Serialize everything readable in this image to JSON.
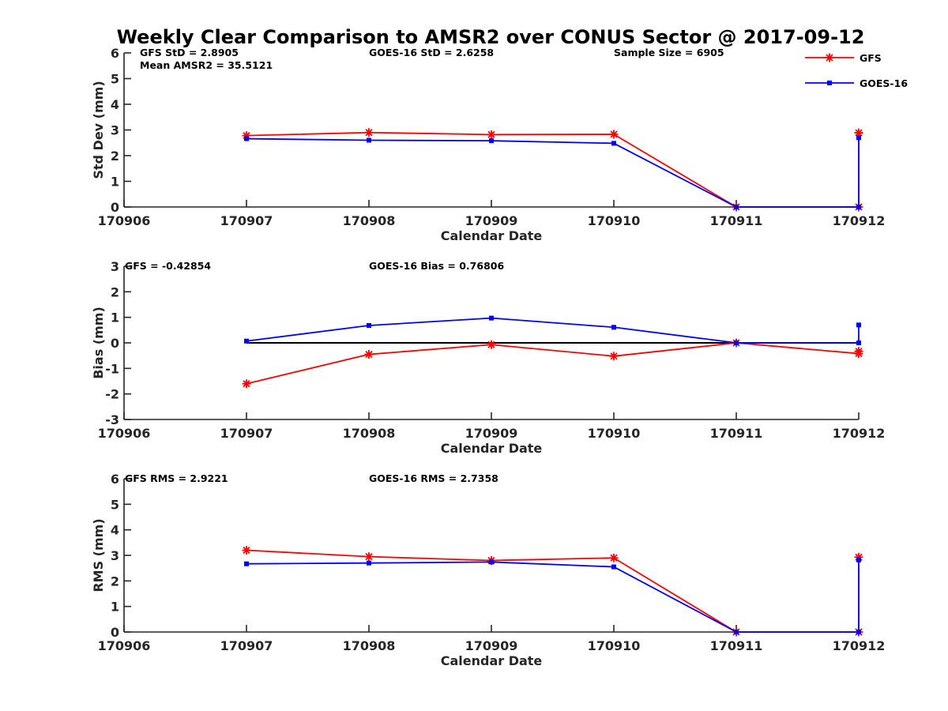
{
  "figure_title": "Weekly Clear Comparison to AMSR2 over CONUS Sector @ 2017-09-12",
  "colors": {
    "gfs": "#ff0000",
    "goes": "#0000ff",
    "zero_line": "#000000"
  },
  "legend": {
    "placement": "top-right",
    "entries": [
      "GFS",
      "GOES-16"
    ]
  },
  "chart_data": [
    {
      "type": "line",
      "ylabel": "Std Dev (mm)",
      "xlabel": "Calendar Date",
      "x_ticks": [
        "170906",
        "170907",
        "170908",
        "170909",
        "170910",
        "170911",
        "170912"
      ],
      "xlim": [
        0,
        6
      ],
      "ylim": [
        0,
        6
      ],
      "y_ticks": [
        0,
        1,
        2,
        3,
        4,
        5,
        6
      ],
      "annotations": [
        "GFS StD = 2.8905",
        "Mean AMSR2 = 35.5121",
        "GOES-16 StD = 2.6258",
        "Sample Size = 6905"
      ],
      "series": [
        {
          "name": "GFS",
          "x": [
            1,
            2,
            3,
            4,
            5,
            6,
            6
          ],
          "y": [
            2.78,
            2.9,
            2.82,
            2.83,
            0,
            0,
            2.89
          ]
        },
        {
          "name": "GOES-16",
          "x": [
            1,
            2,
            3,
            4,
            5,
            6,
            6
          ],
          "y": [
            2.66,
            2.6,
            2.58,
            2.48,
            0,
            0,
            2.7
          ]
        }
      ]
    },
    {
      "type": "line",
      "ylabel": "Bias (mm)",
      "xlabel": "Calendar Date",
      "x_ticks": [
        "170906",
        "170907",
        "170908",
        "170909",
        "170910",
        "170911",
        "170912"
      ],
      "xlim": [
        0,
        6
      ],
      "ylim": [
        -3,
        3
      ],
      "y_ticks": [
        -3,
        -2,
        -1,
        0,
        1,
        2,
        3
      ],
      "zero_line": {
        "x": [
          1,
          6
        ],
        "y": 0
      },
      "annotations": [
        "GFS = -0.42854",
        "GOES-16 Bias  = 0.76806"
      ],
      "series": [
        {
          "name": "GFS",
          "x": [
            1,
            2,
            3,
            4,
            5,
            6,
            6
          ],
          "y": [
            -1.6,
            -0.45,
            -0.07,
            -0.52,
            0,
            -0.42,
            -0.33
          ]
        },
        {
          "name": "GOES-16",
          "x": [
            1,
            2,
            3,
            4,
            5,
            6,
            6
          ],
          "y": [
            0.07,
            0.68,
            0.97,
            0.61,
            0,
            0,
            0.7
          ]
        }
      ]
    },
    {
      "type": "line",
      "ylabel": "RMS (mm)",
      "xlabel": "Calendar Date",
      "x_ticks": [
        "170906",
        "170907",
        "170908",
        "170909",
        "170910",
        "170911",
        "170912"
      ],
      "xlim": [
        0,
        6
      ],
      "ylim": [
        0,
        6
      ],
      "y_ticks": [
        0,
        1,
        2,
        3,
        4,
        5,
        6
      ],
      "annotations": [
        "GFS RMS = 2.9221",
        "GOES-16 RMS = 2.7358"
      ],
      "series": [
        {
          "name": "GFS",
          "x": [
            1,
            2,
            3,
            4,
            5,
            6,
            6
          ],
          "y": [
            3.2,
            2.95,
            2.8,
            2.9,
            0,
            0,
            2.93
          ]
        },
        {
          "name": "GOES-16",
          "x": [
            1,
            2,
            3,
            4,
            5,
            6,
            6
          ],
          "y": [
            2.67,
            2.7,
            2.74,
            2.55,
            0,
            0,
            2.82
          ]
        }
      ]
    }
  ]
}
